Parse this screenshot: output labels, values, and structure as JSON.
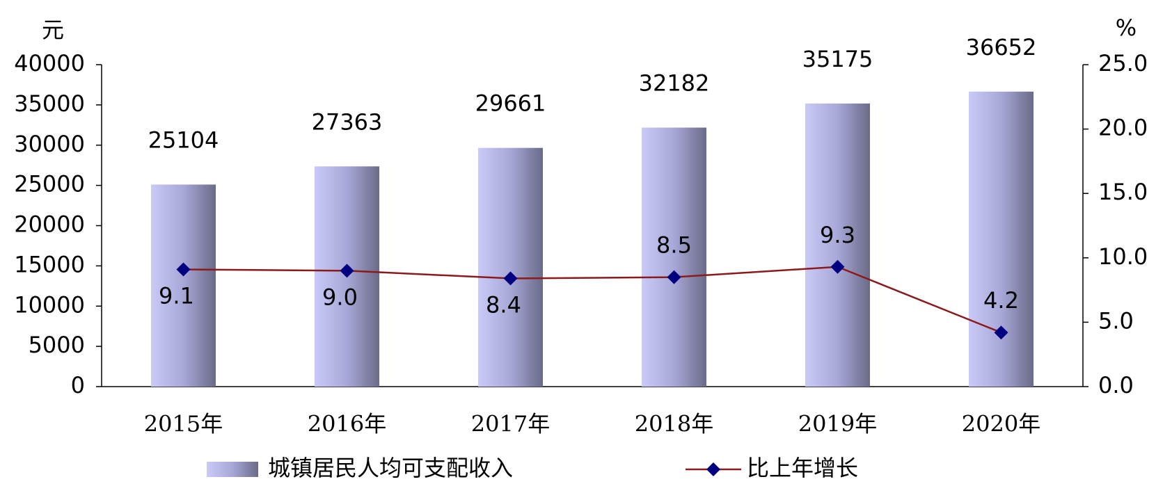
{
  "chart_data": {
    "type": "bar",
    "y_unit": "元",
    "y2_unit": "%",
    "categories": [
      "2015年",
      "2016年",
      "2017年",
      "2018年",
      "2019年",
      "2020年"
    ],
    "series": [
      {
        "name": "城镇居民人均可支配收入",
        "type": "bar",
        "color": "#c8c8f8",
        "values": [
          25104,
          27363,
          29661,
          32182,
          35175,
          36652
        ]
      },
      {
        "name": "比上年增长",
        "type": "line",
        "axis": "y2",
        "color": "#8b1a1a",
        "marker_color": "#000080",
        "values": [
          9.1,
          9.0,
          8.4,
          8.5,
          9.3,
          4.2
        ],
        "value_labels": [
          "9.1",
          "9.0",
          "8.4",
          "8.5",
          "9.3",
          "4.2"
        ]
      }
    ],
    "ylim": [
      0,
      40000
    ],
    "yticks": [
      0,
      5000,
      10000,
      15000,
      20000,
      25000,
      30000,
      35000,
      40000
    ],
    "y2lim": [
      0,
      25
    ],
    "y2ticks": [
      {
        "value": 0,
        "label": "0.0"
      },
      {
        "value": 5,
        "label": "5.0"
      },
      {
        "value": 10,
        "label": "10.0"
      },
      {
        "value": 15,
        "label": "15.0"
      },
      {
        "value": 20,
        "label": "20.0"
      },
      {
        "value": 25,
        "label": "25.0"
      }
    ],
    "grid": false
  }
}
